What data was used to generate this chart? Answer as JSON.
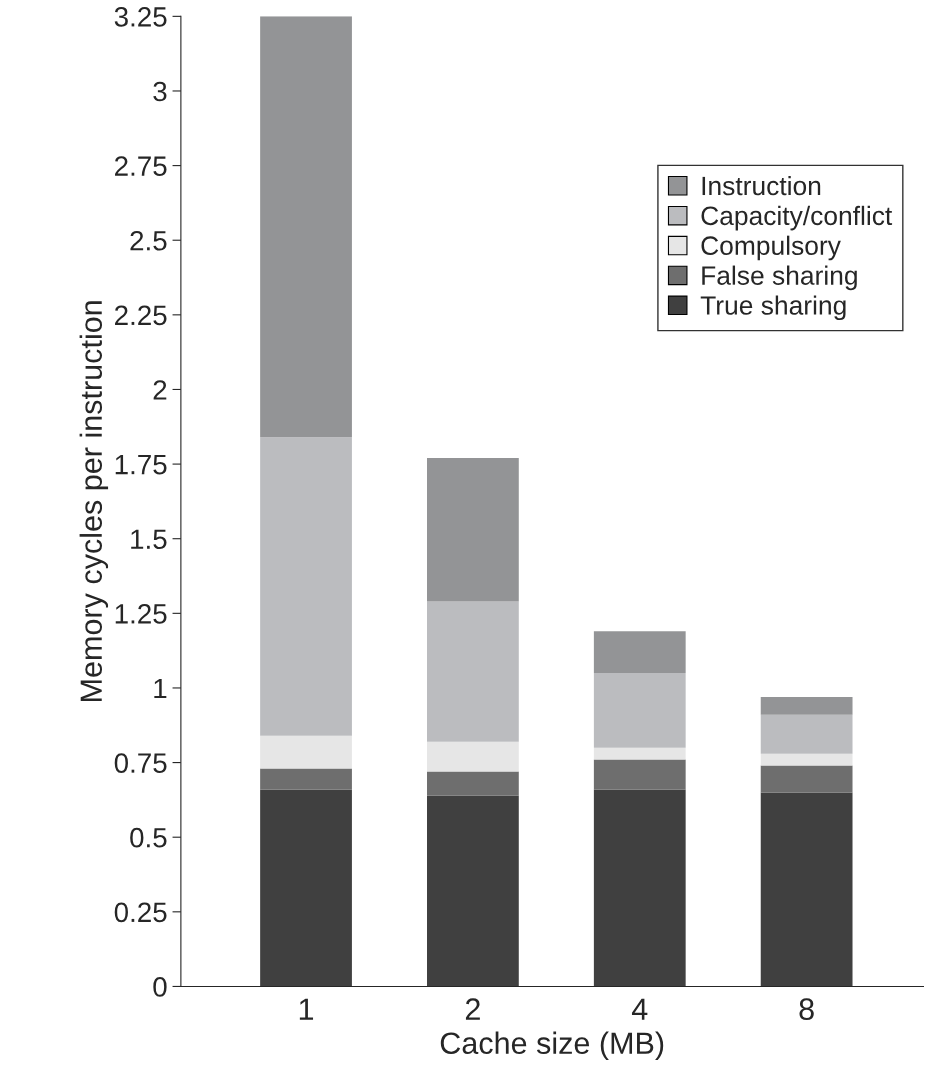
{
  "chart_data": {
    "type": "bar",
    "stacked": true,
    "xlabel": "Cache size (MB)",
    "ylabel": "Memory cycles per instruction",
    "categories": [
      "1",
      "2",
      "4",
      "8"
    ],
    "series": [
      {
        "name": "True sharing",
        "color": "#404040",
        "values": [
          0.66,
          0.64,
          0.66,
          0.65
        ]
      },
      {
        "name": "False sharing",
        "color": "#6e6e6e",
        "values": [
          0.07,
          0.08,
          0.1,
          0.09
        ]
      },
      {
        "name": "Compulsory",
        "color": "#e6e6e6",
        "values": [
          0.11,
          0.1,
          0.04,
          0.04
        ]
      },
      {
        "name": "Capacity/conflict",
        "color": "#bbbcbf",
        "values": [
          1.0,
          0.47,
          0.25,
          0.13
        ]
      },
      {
        "name": "Instruction",
        "color": "#939496",
        "values": [
          1.41,
          0.48,
          0.14,
          0.06
        ]
      }
    ],
    "ylim": [
      0,
      3.25
    ],
    "yticks": [
      0,
      0.25,
      0.5,
      0.75,
      1,
      1.25,
      1.5,
      1.75,
      2,
      2.25,
      2.5,
      2.75,
      3,
      3.25
    ],
    "grid": false,
    "legend": "top right"
  }
}
